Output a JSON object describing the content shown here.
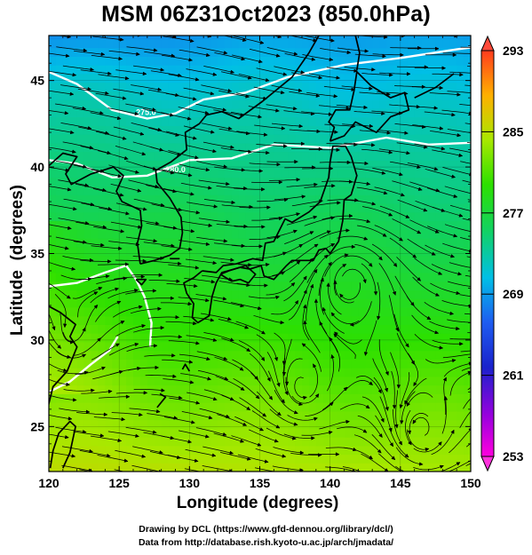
{
  "title": "MSM 06Z31Oct2023 (850.0hPa)",
  "xaxis": {
    "label": "Longitude (degrees)",
    "range": [
      120,
      150
    ],
    "ticks": [
      120,
      125,
      130,
      135,
      140,
      145,
      150
    ]
  },
  "yaxis": {
    "label": "Latitude  (degrees)",
    "range": [
      22.4,
      47.6
    ],
    "ticks": [
      25,
      30,
      35,
      40,
      45
    ]
  },
  "colorbar": {
    "min": 253,
    "max": 293,
    "ticks": [
      253,
      261,
      269,
      277,
      285,
      293
    ]
  },
  "contour_labels": [
    "275.0",
    "280.0"
  ],
  "credit_line1": "Drawing by DCL (https://www.gfd-dennou.org/library/dcl/)",
  "credit_line2": "Data from http://database.rish.kyoto-u.ac.jp/arch/jmadata/"
}
